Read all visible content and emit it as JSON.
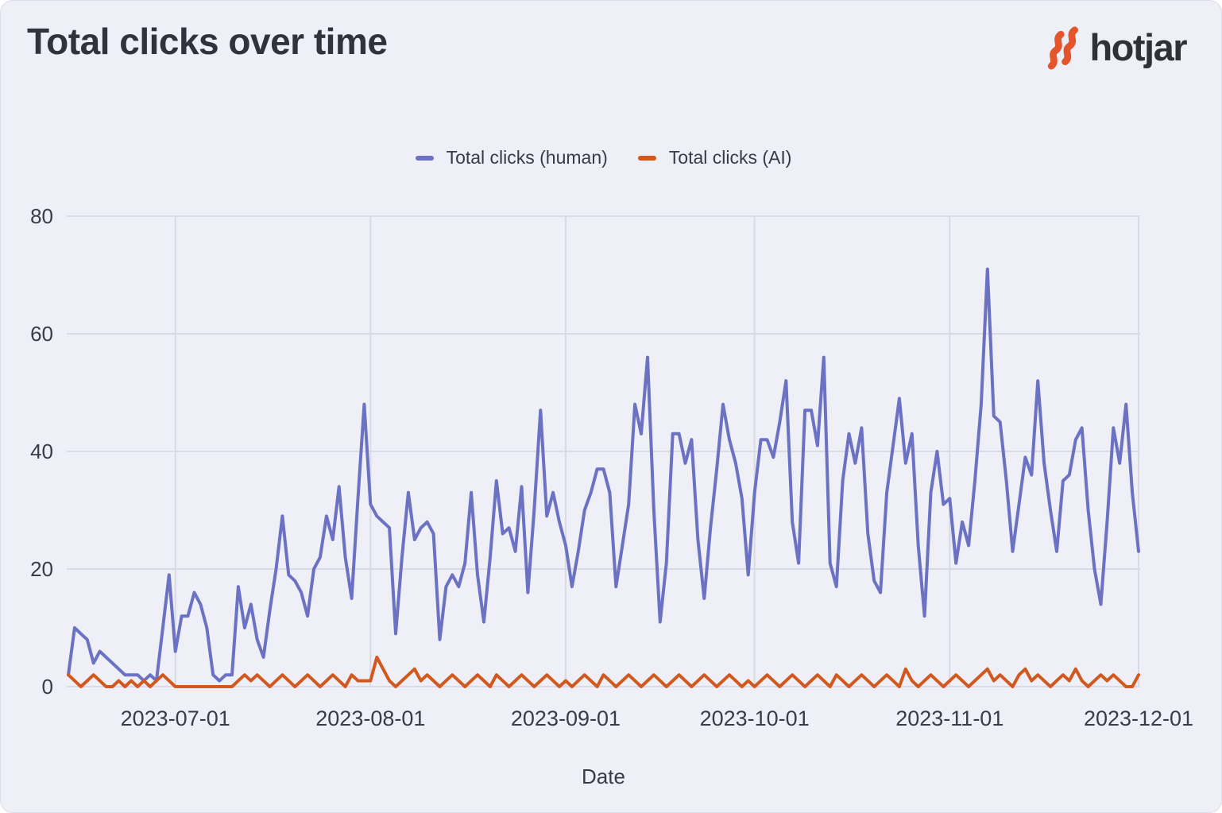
{
  "header": {
    "title": "Total clicks over time",
    "logo_text": "hotjar"
  },
  "legend": {
    "items": [
      {
        "label": "Total clicks (human)",
        "color": "#6B71C3"
      },
      {
        "label": "Total clicks (AI)",
        "color": "#D2591E"
      }
    ]
  },
  "colors": {
    "background": "#EEEFF7",
    "gridline": "#D9DAE3",
    "tick_text": "#3B3B45",
    "title_text": "#32323C",
    "logo_orange": "#E4552B",
    "human_line": "#6B71C3",
    "ai_line": "#D2591E"
  },
  "chart_data": {
    "type": "line",
    "title": "Total clicks over time",
    "xlabel": "Date",
    "x_start": "2023-06-14",
    "x_frequency": "daily",
    "ylim": [
      0,
      80
    ],
    "yticks": [
      0,
      20,
      40,
      60,
      80
    ],
    "xticks": [
      "2023-07-01",
      "2023-08-01",
      "2023-09-01",
      "2023-10-01",
      "2023-11-01",
      "2023-12-01"
    ],
    "grid": true,
    "legend_position": "top-center",
    "series": [
      {
        "name": "Total clicks (human)",
        "color": "#6B71C3",
        "values": [
          2,
          10,
          9,
          8,
          4,
          6,
          5,
          4,
          3,
          2,
          2,
          2,
          1,
          2,
          1,
          10,
          19,
          6,
          12,
          12,
          16,
          14,
          10,
          2,
          1,
          2,
          2,
          17,
          10,
          14,
          8,
          5,
          13,
          20,
          29,
          19,
          18,
          16,
          12,
          20,
          22,
          29,
          25,
          34,
          22,
          15,
          32,
          48,
          31,
          29,
          28,
          27,
          9,
          22,
          33,
          25,
          27,
          28,
          26,
          8,
          17,
          19,
          17,
          21,
          33,
          19,
          11,
          22,
          35,
          26,
          27,
          23,
          34,
          16,
          30,
          47,
          29,
          33,
          28,
          24,
          17,
          23,
          30,
          33,
          37,
          37,
          33,
          17,
          24,
          31,
          48,
          43,
          56,
          30,
          11,
          21,
          43,
          43,
          38,
          42,
          25,
          15,
          27,
          37,
          48,
          42,
          38,
          32,
          19,
          33,
          42,
          42,
          39,
          45,
          52,
          28,
          21,
          47,
          47,
          41,
          56,
          21,
          17,
          35,
          43,
          38,
          44,
          26,
          18,
          16,
          33,
          41,
          49,
          38,
          43,
          24,
          12,
          33,
          40,
          31,
          32,
          21,
          28,
          24,
          35,
          48,
          71,
          46,
          45,
          35,
          23,
          31,
          39,
          36,
          52,
          38,
          30,
          23,
          35,
          36,
          42,
          44,
          30,
          20,
          14,
          28,
          44,
          38,
          48,
          33,
          23
        ]
      },
      {
        "name": "Total clicks (AI)",
        "color": "#D2591E",
        "values": [
          2,
          1,
          0,
          1,
          2,
          1,
          0,
          0,
          1,
          0,
          1,
          0,
          1,
          0,
          1,
          2,
          1,
          0,
          0,
          0,
          0,
          0,
          0,
          0,
          0,
          0,
          0,
          1,
          2,
          1,
          2,
          1,
          0,
          1,
          2,
          1,
          0,
          1,
          2,
          1,
          0,
          1,
          2,
          1,
          0,
          2,
          1,
          1,
          1,
          5,
          3,
          1,
          0,
          1,
          2,
          3,
          1,
          2,
          1,
          0,
          1,
          2,
          1,
          0,
          1,
          2,
          1,
          0,
          2,
          1,
          0,
          1,
          2,
          1,
          0,
          1,
          2,
          1,
          0,
          1,
          0,
          1,
          2,
          1,
          0,
          2,
          1,
          0,
          1,
          2,
          1,
          0,
          1,
          2,
          1,
          0,
          1,
          2,
          1,
          0,
          1,
          2,
          1,
          0,
          1,
          2,
          1,
          0,
          1,
          0,
          1,
          2,
          1,
          0,
          1,
          2,
          1,
          0,
          1,
          2,
          1,
          0,
          2,
          1,
          0,
          1,
          2,
          1,
          0,
          1,
          2,
          1,
          0,
          3,
          1,
          0,
          1,
          2,
          1,
          0,
          1,
          2,
          1,
          0,
          1,
          2,
          3,
          1,
          2,
          1,
          0,
          2,
          3,
          1,
          2,
          1,
          0,
          1,
          2,
          1,
          3,
          1,
          0,
          1,
          2,
          1,
          2,
          1,
          0,
          0,
          2
        ]
      }
    ]
  }
}
